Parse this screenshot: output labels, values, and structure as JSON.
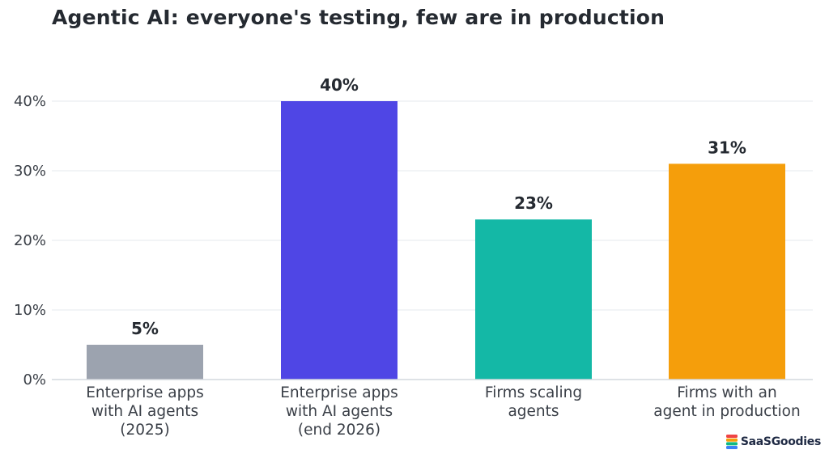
{
  "title": "Agentic AI: everyone's testing, few are in production",
  "chart_data": {
    "type": "bar",
    "categories": [
      [
        "Enterprise apps",
        "with AI agents",
        "(2025)"
      ],
      [
        "Enterprise apps",
        "with AI agents",
        "(end 2026)"
      ],
      [
        "Firms scaling",
        "agents"
      ],
      [
        "Firms with an",
        "agent in production"
      ]
    ],
    "values": [
      5,
      40,
      23,
      31
    ],
    "value_labels": [
      "5%",
      "40%",
      "23%",
      "31%"
    ],
    "colors": [
      "#9ca3af",
      "#4f46e5",
      "#14b8a6",
      "#f59e0b"
    ],
    "yticks": [
      0,
      10,
      20,
      30,
      40
    ],
    "ytick_labels": [
      "0%",
      "10%",
      "20%",
      "30%",
      "40%"
    ],
    "ylim": [
      0,
      40
    ],
    "xlabel": "",
    "ylabel": "",
    "grid": true,
    "grid_color": "#eef0f3",
    "axis_color": "#d4d8de"
  },
  "brand": {
    "name": "SaaSGoodies",
    "icon": "stacked-layers-logo-icon"
  }
}
